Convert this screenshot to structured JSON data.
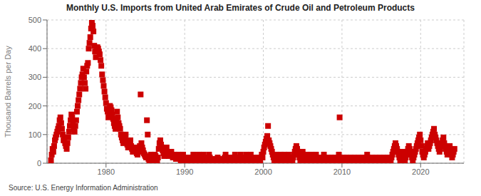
{
  "chart_data": {
    "type": "scatter",
    "title": "Monthly U.S. Imports from United Arab Emirates of Crude Oil and Petroleum Products",
    "ylabel": "Thousand Barrels per Day",
    "annotations": [
      "Source: U.S. Energy Information Administration"
    ],
    "color": "#CC0000",
    "marker": "square",
    "grid": true,
    "xlim": [
      1972.5,
      2025.5
    ],
    "xticks": [
      1980,
      1990,
      2000,
      2010,
      2020
    ],
    "ylim": [
      0,
      500
    ],
    "yticks": [
      0,
      100,
      200,
      300,
      400,
      500
    ],
    "x": [
      1973,
      1973.1,
      1973.2,
      1973.3,
      1973.4,
      1973.5,
      1973.6,
      1973.7,
      1973.8,
      1973.9,
      1974,
      1974.1,
      1974.2,
      1974.3,
      1974.4,
      1974.5,
      1974.6,
      1974.7,
      1974.8,
      1974.9,
      1975,
      1975.1,
      1975.2,
      1975.3,
      1975.4,
      1975.5,
      1975.6,
      1975.7,
      1975.8,
      1975.9,
      1976,
      1976.1,
      1976.2,
      1976.3,
      1976.4,
      1976.5,
      1976.6,
      1976.7,
      1976.8,
      1976.9,
      1977,
      1977.1,
      1977.2,
      1977.3,
      1977.4,
      1977.5,
      1977.6,
      1977.7,
      1977.8,
      1977.9,
      1978,
      1978.1,
      1978.2,
      1978.3,
      1978.4,
      1978.5,
      1978.6,
      1978.7,
      1978.8,
      1978.9,
      1979,
      1979.1,
      1979.2,
      1979.3,
      1979.4,
      1979.5,
      1979.6,
      1979.7,
      1979.8,
      1979.9,
      1980,
      1980.1,
      1980.2,
      1980.3,
      1980.4,
      1980.5,
      1980.6,
      1980.7,
      1980.8,
      1980.9,
      1981,
      1981.1,
      1981.2,
      1981.3,
      1981.4,
      1981.5,
      1981.6,
      1981.7,
      1981.8,
      1981.9,
      1982,
      1982.1,
      1982.2,
      1982.3,
      1982.4,
      1982.5,
      1982.6,
      1982.7,
      1982.8,
      1982.9,
      1983,
      1983.1,
      1983.2,
      1983.3,
      1983.4,
      1983.5,
      1983.6,
      1983.7,
      1983.8,
      1983.9,
      1984,
      1984.1,
      1984.2,
      1984.3,
      1984.4,
      1984.5,
      1984.6,
      1984.7,
      1984.8,
      1984.9,
      1985,
      1985.1,
      1985.2,
      1985.3,
      1985.4,
      1985.5,
      1985.6,
      1985.7,
      1985.8,
      1985.9,
      1986,
      1986.1,
      1986.2,
      1986.3,
      1986.4,
      1986.5,
      1986.6,
      1986.7,
      1986.8,
      1986.9,
      1987,
      1987.1,
      1987.2,
      1987.3,
      1987.4,
      1987.5,
      1987.6,
      1987.7,
      1987.8,
      1987.9,
      1988,
      1988.1,
      1988.2,
      1988.3,
      1988.4,
      1988.5,
      1988.6,
      1988.7,
      1988.8,
      1988.9,
      1989,
      1989.1,
      1989.2,
      1989.3,
      1989.4,
      1989.5,
      1989.6,
      1989.7,
      1989.8,
      1989.9,
      1990,
      1990.1,
      1990.2,
      1990.3,
      1990.4,
      1990.5,
      1990.6,
      1990.7,
      1990.8,
      1990.9,
      1991,
      1991.1,
      1991.2,
      1991.3,
      1991.4,
      1991.5,
      1991.6,
      1991.7,
      1991.8,
      1991.9,
      1992,
      1992.1,
      1992.2,
      1992.3,
      1992.4,
      1992.5,
      1992.6,
      1992.7,
      1992.8,
      1992.9,
      1993,
      1993.1,
      1993.2,
      1993.3,
      1993.4,
      1993.5,
      1993.6,
      1993.7,
      1993.8,
      1993.9,
      1994,
      1994.1,
      1994.2,
      1994.3,
      1994.4,
      1994.5,
      1994.6,
      1994.7,
      1994.8,
      1994.9,
      1995,
      1995.1,
      1995.2,
      1995.3,
      1995.4,
      1995.5,
      1995.6,
      1995.7,
      1995.8,
      1995.9,
      1996,
      1996.1,
      1996.2,
      1996.3,
      1996.4,
      1996.5,
      1996.6,
      1996.7,
      1996.8,
      1996.9,
      1997,
      1997.1,
      1997.2,
      1997.3,
      1997.4,
      1997.5,
      1997.6,
      1997.7,
      1997.8,
      1997.9,
      1998,
      1998.1,
      1998.2,
      1998.3,
      1998.4,
      1998.5,
      1998.6,
      1998.7,
      1998.8,
      1998.9,
      1999,
      1999.1,
      1999.2,
      1999.3,
      1999.4,
      1999.5,
      1999.6,
      1999.7,
      1999.8,
      1999.9,
      2000,
      2000.1,
      2000.2,
      2000.3,
      2000.4,
      2000.5,
      2000.6,
      2000.7,
      2000.8,
      2000.9,
      2001,
      2001.1,
      2001.2,
      2001.3,
      2001.4,
      2001.5,
      2001.6,
      2001.7,
      2001.8,
      2001.9,
      2002,
      2002.1,
      2002.2,
      2002.3,
      2002.4,
      2002.5,
      2002.6,
      2002.7,
      2002.8,
      2002.9,
      2003,
      2003.1,
      2003.2,
      2003.3,
      2003.4,
      2003.5,
      2003.6,
      2003.7,
      2003.8,
      2003.9,
      2004,
      2004.1,
      2004.2,
      2004.3,
      2004.4,
      2004.5,
      2004.6,
      2004.7,
      2004.8,
      2004.9,
      2005,
      2005.1,
      2005.2,
      2005.3,
      2005.4,
      2005.5,
      2005.6,
      2005.7,
      2005.8,
      2005.9,
      2006,
      2006.1,
      2006.2,
      2006.3,
      2006.4,
      2006.5,
      2006.6,
      2006.7,
      2006.8,
      2006.9,
      2007,
      2007.1,
      2007.2,
      2007.3,
      2007.4,
      2007.5,
      2007.6,
      2007.7,
      2007.8,
      2007.9,
      2008,
      2008.1,
      2008.2,
      2008.3,
      2008.4,
      2008.5,
      2008.6,
      2008.7,
      2008.8,
      2008.9,
      2009,
      2009.1,
      2009.2,
      2009.3,
      2009.4,
      2009.5,
      2009.6,
      2009.7,
      2009.8,
      2009.9,
      2010,
      2010.1,
      2010.2,
      2010.3,
      2010.4,
      2010.5,
      2010.6,
      2010.7,
      2010.8,
      2010.9,
      2011,
      2011.1,
      2011.2,
      2011.3,
      2011.4,
      2011.5,
      2011.6,
      2011.7,
      2011.8,
      2011.9,
      2012,
      2012.1,
      2012.2,
      2012.3,
      2012.4,
      2012.5,
      2012.6,
      2012.7,
      2012.8,
      2012.9,
      2013,
      2013.1,
      2013.2,
      2013.3,
      2013.4,
      2013.5,
      2013.6,
      2013.7,
      2013.8,
      2013.9,
      2014,
      2014.1,
      2014.2,
      2014.3,
      2014.4,
      2014.5,
      2014.6,
      2014.7,
      2014.8,
      2014.9,
      2015,
      2015.1,
      2015.2,
      2015.3,
      2015.4,
      2015.5,
      2015.6,
      2015.7,
      2015.8,
      2015.9,
      2016,
      2016.1,
      2016.2,
      2016.3,
      2016.4,
      2016.5,
      2016.6,
      2016.7,
      2016.8,
      2016.9,
      2017,
      2017.1,
      2017.2,
      2017.3,
      2017.4,
      2017.5,
      2017.6,
      2017.7,
      2017.8,
      2017.9,
      2018,
      2018.1,
      2018.2,
      2018.3,
      2018.4,
      2018.5,
      2018.6,
      2018.7,
      2018.8,
      2018.9,
      2019,
      2019.1,
      2019.2,
      2019.3,
      2019.4,
      2019.5,
      2019.6,
      2019.7,
      2019.8,
      2019.9,
      2020,
      2020.1,
      2020.2,
      2020.3,
      2020.4,
      2020.5,
      2020.6,
      2020.7,
      2020.8,
      2020.9,
      2021,
      2021.1,
      2021.2,
      2021.3,
      2021.4,
      2021.5,
      2021.6,
      2021.7,
      2021.8,
      2021.9,
      2022,
      2022.1,
      2022.2,
      2022.3,
      2022.4,
      2022.5,
      2022.6,
      2022.7,
      2022.8,
      2022.9,
      2023,
      2023.1,
      2023.2,
      2023.3,
      2023.4,
      2023.5,
      2023.6,
      2023.7,
      2023.8,
      2023.9,
      2024,
      2024.1,
      2024.2,
      2024.3
    ],
    "values": [
      10,
      30,
      50,
      40,
      60,
      80,
      90,
      100,
      110,
      120,
      130,
      150,
      160,
      140,
      120,
      100,
      80,
      90,
      70,
      60,
      50,
      70,
      90,
      110,
      130,
      150,
      170,
      160,
      140,
      120,
      110,
      130,
      150,
      180,
      200,
      220,
      240,
      260,
      280,
      300,
      310,
      330,
      300,
      280,
      260,
      320,
      340,
      350,
      400,
      420,
      440,
      470,
      490,
      480,
      460,
      410,
      390,
      370,
      395,
      405,
      400,
      390,
      380,
      360,
      340,
      310,
      290,
      270,
      250,
      230,
      210,
      190,
      180,
      160,
      170,
      200,
      195,
      185,
      170,
      155,
      140,
      130,
      120,
      150,
      180,
      160,
      140,
      130,
      120,
      100,
      90,
      80,
      70,
      80,
      90,
      100,
      75,
      65,
      55,
      60,
      70,
      80,
      60,
      50,
      40,
      45,
      50,
      55,
      45,
      35,
      30,
      40,
      50,
      60,
      240,
      70,
      55,
      45,
      35,
      30,
      25,
      20,
      150,
      100,
      15,
      10,
      20,
      30,
      20,
      15,
      10,
      20,
      30,
      25,
      15,
      10,
      20,
      50,
      70,
      80,
      65,
      55,
      45,
      35,
      25,
      35,
      45,
      55,
      40,
      30,
      25,
      30,
      35,
      40,
      30,
      20,
      25,
      30,
      20,
      15,
      20,
      25,
      30,
      20,
      15,
      10,
      20,
      25,
      30,
      20,
      15,
      10,
      5,
      10,
      15,
      20,
      15,
      10,
      5,
      10,
      20,
      30,
      20,
      15,
      10,
      5,
      10,
      20,
      30,
      20,
      15,
      10,
      15,
      20,
      30,
      20,
      15,
      10,
      5,
      10,
      20,
      30,
      20,
      15,
      10,
      5,
      10,
      15,
      10,
      5,
      10,
      15,
      20,
      15,
      10,
      5,
      10,
      15,
      10,
      5,
      10,
      20,
      30,
      20,
      15,
      10,
      5,
      10,
      20,
      15,
      10,
      5,
      10,
      20,
      30,
      20,
      15,
      10,
      5,
      10,
      20,
      30,
      20,
      15,
      10,
      5,
      10,
      20,
      30,
      20,
      15,
      5,
      10,
      20,
      30,
      20,
      15,
      10,
      5,
      0,
      5,
      10,
      20,
      15,
      10,
      5,
      10,
      20,
      30,
      20,
      40,
      55,
      65,
      75,
      85,
      95,
      130,
      80,
      70,
      60,
      50,
      40,
      30,
      20,
      10,
      20,
      30,
      20,
      10,
      5,
      10,
      20,
      30,
      20,
      15,
      10,
      20,
      30,
      20,
      15,
      10,
      20,
      30,
      20,
      15,
      10,
      5,
      10,
      20,
      30,
      40,
      50,
      60,
      50,
      40,
      30,
      20,
      10,
      20,
      30,
      40,
      30,
      20,
      10,
      20,
      30,
      20,
      10,
      5,
      10,
      20,
      30,
      20,
      10,
      5,
      10,
      20,
      30,
      20,
      10,
      5,
      10,
      20,
      10,
      5,
      10,
      20,
      30,
      20,
      10,
      5,
      10,
      20,
      15,
      10,
      5,
      10,
      20,
      10,
      5,
      10,
      20,
      10,
      5,
      10,
      20,
      30,
      160,
      20,
      10,
      5,
      10,
      20,
      10,
      5,
      10,
      20,
      15,
      10,
      5,
      10,
      20,
      15,
      10,
      5,
      10,
      20,
      15,
      10,
      5,
      10,
      20,
      15,
      10,
      5,
      10,
      20,
      15,
      10,
      5,
      10,
      20,
      30,
      20,
      15,
      10,
      5,
      10,
      20,
      15,
      10,
      5,
      10,
      20,
      15,
      10,
      5,
      10,
      20,
      15,
      10,
      5,
      10,
      20,
      15,
      10,
      5,
      10,
      20,
      15,
      10,
      5,
      10,
      20,
      30,
      40,
      50,
      60,
      70,
      60,
      50,
      40,
      30,
      20,
      10,
      20,
      30,
      40,
      30,
      20,
      10,
      20,
      30,
      40,
      50,
      60,
      50,
      40,
      30,
      20,
      10,
      20,
      30,
      40,
      50,
      60,
      70,
      80,
      90,
      100,
      80,
      60,
      40,
      30,
      20,
      30,
      40,
      50,
      60,
      70,
      50,
      60,
      70,
      80,
      90,
      100,
      110,
      120,
      100,
      90,
      80,
      70,
      60,
      50,
      40,
      50,
      60,
      70,
      80,
      90,
      70,
      60,
      50,
      40,
      30,
      40,
      50,
      60,
      40,
      30,
      20,
      30,
      40,
      50
    ]
  }
}
